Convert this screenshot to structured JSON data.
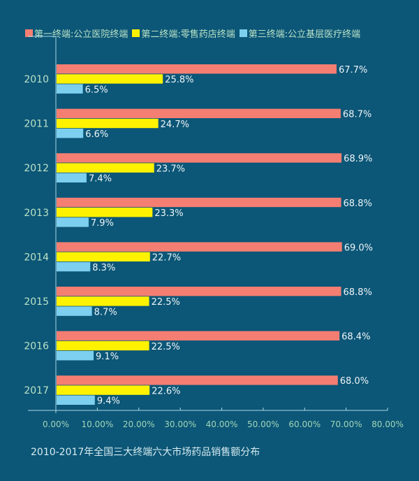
{
  "chart_data": {
    "type": "bar",
    "orientation": "horizontal",
    "caption": "2010-2017年全国三大终端六大市场药品销售额分布",
    "categories": [
      "2010",
      "2011",
      "2012",
      "2013",
      "2014",
      "2015",
      "2016",
      "2017"
    ],
    "series": [
      {
        "name": "第一终端:公立医院终端",
        "color": "#f47e72",
        "values": [
          67.7,
          68.7,
          68.9,
          68.8,
          69.0,
          68.8,
          68.4,
          68.0
        ],
        "labels": [
          "67.7%",
          "68.7%",
          "68.9%",
          "68.8%",
          "69.0%",
          "68.8%",
          "68.4%",
          "68.0%"
        ]
      },
      {
        "name": "第二终端:零售药店终端",
        "color": "#fff200",
        "values": [
          25.8,
          24.7,
          23.7,
          23.3,
          22.7,
          22.5,
          22.5,
          22.6
        ],
        "labels": [
          "25.8%",
          "24.7%",
          "23.7%",
          "23.3%",
          "22.7%",
          "22.5%",
          "22.5%",
          "22.6%"
        ]
      },
      {
        "name": "第三终端:公立基层医疗终端",
        "color": "#7dcff0",
        "values": [
          6.5,
          6.6,
          7.4,
          7.9,
          8.3,
          8.7,
          9.1,
          9.4
        ],
        "labels": [
          "6.5%",
          "6.6%",
          "7.4%",
          "7.9%",
          "8.3%",
          "8.7%",
          "9.1%",
          "9.4%"
        ]
      }
    ],
    "xlim": [
      0,
      80
    ],
    "xticks": [
      "0.00%",
      "10.00%",
      "20.00%",
      "30.00%",
      "40.00%",
      "50.00%",
      "60.00%",
      "70.00%",
      "80.00%"
    ],
    "grid": false,
    "legend_position": "top"
  }
}
